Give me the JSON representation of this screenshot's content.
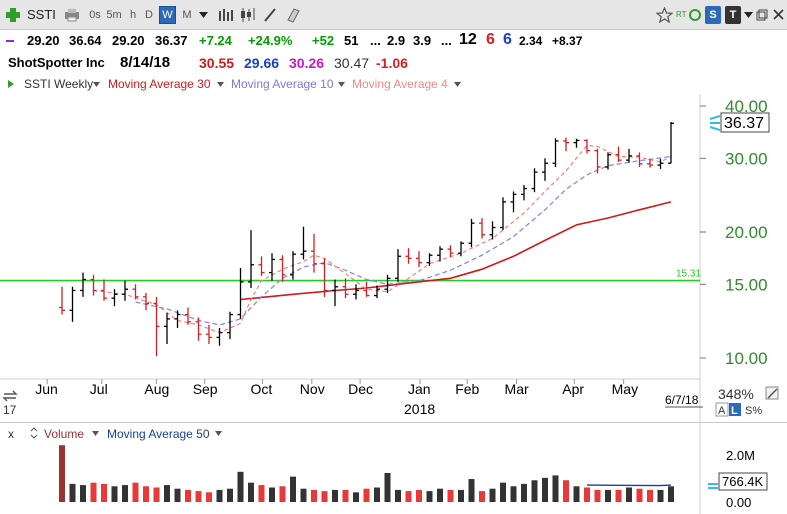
{
  "toolbar": {
    "symbol": "SSTI",
    "periods": [
      "0s",
      "5m",
      "h",
      "D",
      "W",
      "M"
    ],
    "selected_period": "W",
    "rt_label": "RT",
    "s_badge": "S",
    "t_badge": "T"
  },
  "quote": {
    "open": "29.20",
    "high": "36.64",
    "low": "29.20",
    "close": "36.37",
    "change": "+7.24",
    "change_pct": "+24.9%",
    "v1": "+52",
    "v2": "51",
    "dots": "...",
    "v3": "2.9",
    "v4": "3.9",
    "v5": "...",
    "n12": "12",
    "n6a": "6",
    "n6b": "6",
    "v6": "2.34",
    "v7": "+8.37"
  },
  "info": {
    "company": "ShotSpotter Inc",
    "date": "8/14/18",
    "ma30": "30.55",
    "ma10": "29.66",
    "ma4": "30.26",
    "last": "30.47",
    "delta": "-1.06"
  },
  "legend": {
    "series": "SSTI Weekly",
    "ma30": "Moving Average 30",
    "ma10": "Moving Average 10",
    "ma4": "Moving Average 4"
  },
  "price_axis": {
    "ticks": [
      "40.00",
      "30.00",
      "20.00",
      "15.00",
      "10.00"
    ],
    "current_price": "36.37",
    "percent": "348%",
    "line_label": "15.31"
  },
  "time_axis": {
    "months": [
      "Jun",
      "Jul",
      "Aug",
      "Sep",
      "Oct",
      "Nov",
      "Dec",
      "Jan",
      "Feb",
      "Mar",
      "Apr",
      "May"
    ],
    "year": "2018",
    "date_label": "6/7/18",
    "left_label": "17"
  },
  "scale_buttons": {
    "a": "A",
    "l": "L",
    "s": "S%"
  },
  "volume_panel": {
    "close": "x",
    "label": "Volume",
    "ma_label": "Moving Average 50",
    "ticks": [
      "2.0M",
      "766.4K",
      "0.00"
    ]
  },
  "colors": {
    "up": "#000000",
    "down": "#d42020",
    "ma30": "#cc1b1b",
    "ma10": "#8a8ae6",
    "ma4": "#f08080",
    "hline": "#22cc22",
    "change_up": "#00a000",
    "vol_up": "#333333",
    "vol_down": "#e83838",
    "vol_first": "#993333"
  },
  "chart_data": {
    "type": "ohlc",
    "interval": "weekly",
    "price_scale": "log",
    "ylim": [
      9.0,
      44.0
    ],
    "horizontal_line": 15.31,
    "bars": [
      {
        "o": 13.2,
        "h": 14.8,
        "l": 12.7,
        "c": 13.0
      },
      {
        "o": 13.0,
        "h": 14.8,
        "l": 12.2,
        "c": 14.5
      },
      {
        "o": 14.5,
        "h": 16.0,
        "l": 14.0,
        "c": 15.4
      },
      {
        "o": 15.4,
        "h": 15.8,
        "l": 14.1,
        "c": 14.5
      },
      {
        "o": 14.5,
        "h": 15.4,
        "l": 13.7,
        "c": 13.9
      },
      {
        "o": 13.9,
        "h": 14.6,
        "l": 13.3,
        "c": 14.2
      },
      {
        "o": 14.2,
        "h": 15.3,
        "l": 13.7,
        "c": 14.6
      },
      {
        "o": 14.6,
        "h": 15.0,
        "l": 13.8,
        "c": 14.0
      },
      {
        "o": 14.0,
        "h": 14.3,
        "l": 13.0,
        "c": 13.5
      },
      {
        "o": 13.5,
        "h": 14.0,
        "l": 10.1,
        "c": 11.9
      },
      {
        "o": 11.9,
        "h": 12.8,
        "l": 10.8,
        "c": 12.4
      },
      {
        "o": 12.4,
        "h": 13.0,
        "l": 11.8,
        "c": 12.7
      },
      {
        "o": 12.7,
        "h": 13.2,
        "l": 12.0,
        "c": 12.2
      },
      {
        "o": 12.2,
        "h": 12.5,
        "l": 11.0,
        "c": 11.4
      },
      {
        "o": 11.4,
        "h": 12.0,
        "l": 10.8,
        "c": 11.2
      },
      {
        "o": 11.2,
        "h": 11.8,
        "l": 10.7,
        "c": 11.5
      },
      {
        "o": 11.5,
        "h": 12.9,
        "l": 11.1,
        "c": 12.7
      },
      {
        "o": 12.7,
        "h": 16.4,
        "l": 12.4,
        "c": 15.2
      },
      {
        "o": 15.2,
        "h": 20.2,
        "l": 14.7,
        "c": 16.7
      },
      {
        "o": 16.7,
        "h": 17.5,
        "l": 15.7,
        "c": 16.0
      },
      {
        "o": 16.0,
        "h": 17.8,
        "l": 15.3,
        "c": 17.2
      },
      {
        "o": 17.2,
        "h": 17.6,
        "l": 15.2,
        "c": 15.8
      },
      {
        "o": 15.8,
        "h": 18.0,
        "l": 15.4,
        "c": 17.7
      },
      {
        "o": 17.7,
        "h": 20.6,
        "l": 17.2,
        "c": 18.0
      },
      {
        "o": 18.0,
        "h": 19.8,
        "l": 16.0,
        "c": 16.8
      },
      {
        "o": 16.8,
        "h": 17.3,
        "l": 14.0,
        "c": 14.5
      },
      {
        "o": 14.5,
        "h": 15.4,
        "l": 13.3,
        "c": 14.8
      },
      {
        "o": 14.8,
        "h": 15.5,
        "l": 13.9,
        "c": 14.2
      },
      {
        "o": 14.2,
        "h": 15.0,
        "l": 13.8,
        "c": 14.5
      },
      {
        "o": 14.5,
        "h": 15.2,
        "l": 14.0,
        "c": 14.1
      },
      {
        "o": 14.1,
        "h": 14.9,
        "l": 13.9,
        "c": 14.6
      },
      {
        "o": 14.6,
        "h": 15.8,
        "l": 14.3,
        "c": 15.5
      },
      {
        "o": 15.5,
        "h": 18.2,
        "l": 15.2,
        "c": 17.5
      },
      {
        "o": 17.5,
        "h": 18.3,
        "l": 16.8,
        "c": 17.3
      },
      {
        "o": 17.3,
        "h": 18.0,
        "l": 16.5,
        "c": 16.9
      },
      {
        "o": 16.9,
        "h": 17.8,
        "l": 16.6,
        "c": 17.6
      },
      {
        "o": 17.6,
        "h": 18.5,
        "l": 17.0,
        "c": 18.2
      },
      {
        "o": 18.2,
        "h": 18.6,
        "l": 17.4,
        "c": 17.8
      },
      {
        "o": 17.8,
        "h": 19.0,
        "l": 17.5,
        "c": 18.8
      },
      {
        "o": 18.8,
        "h": 21.5,
        "l": 18.4,
        "c": 21.0
      },
      {
        "o": 21.0,
        "h": 21.6,
        "l": 19.3,
        "c": 19.7
      },
      {
        "o": 19.7,
        "h": 21.2,
        "l": 19.2,
        "c": 20.5
      },
      {
        "o": 20.5,
        "h": 24.2,
        "l": 20.2,
        "c": 23.6
      },
      {
        "o": 23.6,
        "h": 25.0,
        "l": 22.3,
        "c": 24.6
      },
      {
        "o": 24.6,
        "h": 25.9,
        "l": 23.8,
        "c": 25.4
      },
      {
        "o": 25.4,
        "h": 28.4,
        "l": 24.9,
        "c": 27.8
      },
      {
        "o": 27.8,
        "h": 30.0,
        "l": 26.5,
        "c": 29.2
      },
      {
        "o": 29.2,
        "h": 33.5,
        "l": 28.6,
        "c": 33.0
      },
      {
        "o": 33.0,
        "h": 33.6,
        "l": 31.2,
        "c": 32.7
      },
      {
        "o": 32.7,
        "h": 33.4,
        "l": 31.8,
        "c": 33.1
      },
      {
        "o": 33.1,
        "h": 33.3,
        "l": 30.8,
        "c": 31.3
      },
      {
        "o": 31.3,
        "h": 31.6,
        "l": 27.6,
        "c": 28.6
      },
      {
        "o": 28.6,
        "h": 31.0,
        "l": 28.2,
        "c": 30.6
      },
      {
        "o": 30.6,
        "h": 32.0,
        "l": 29.4,
        "c": 29.7
      },
      {
        "o": 29.7,
        "h": 31.6,
        "l": 29.3,
        "c": 30.4
      },
      {
        "o": 30.4,
        "h": 31.0,
        "l": 28.6,
        "c": 29.1
      },
      {
        "o": 29.1,
        "h": 29.9,
        "l": 28.5,
        "c": 28.9
      },
      {
        "o": 28.9,
        "h": 29.9,
        "l": 28.3,
        "c": 29.2
      },
      {
        "o": 29.2,
        "h": 36.64,
        "l": 29.2,
        "c": 36.37
      }
    ],
    "ma30": [
      [
        17,
        13.8
      ],
      [
        22,
        14.2
      ],
      [
        26,
        14.5
      ],
      [
        29,
        14.7
      ],
      [
        33,
        15.1
      ],
      [
        37,
        15.5
      ],
      [
        40,
        16.3
      ],
      [
        43,
        17.5
      ],
      [
        46,
        19.1
      ],
      [
        49,
        20.8
      ],
      [
        52,
        21.6
      ],
      [
        55,
        22.6
      ],
      [
        58,
        23.6
      ]
    ],
    "ma10": [
      [
        7,
        13.6
      ],
      [
        10,
        13.1
      ],
      [
        13,
        12.3
      ],
      [
        15,
        12.0
      ],
      [
        17,
        12.4
      ],
      [
        19,
        14.0
      ],
      [
        21,
        15.5
      ],
      [
        23,
        16.5
      ],
      [
        25,
        16.9
      ],
      [
        27,
        16.2
      ],
      [
        29,
        15.4
      ],
      [
        31,
        15.0
      ],
      [
        34,
        15.3
      ],
      [
        37,
        16.2
      ],
      [
        40,
        17.6
      ],
      [
        43,
        19.5
      ],
      [
        46,
        22.6
      ],
      [
        48,
        25.3
      ],
      [
        50,
        27.4
      ],
      [
        52,
        28.8
      ],
      [
        55,
        29.6
      ],
      [
        58,
        30.3
      ]
    ],
    "ma4": [
      [
        3,
        14.5
      ],
      [
        6,
        14.2
      ],
      [
        9,
        13.4
      ],
      [
        11,
        12.3
      ],
      [
        13,
        12.0
      ],
      [
        15,
        11.5
      ],
      [
        17,
        12.1
      ],
      [
        18,
        13.8
      ],
      [
        19,
        15.3
      ],
      [
        21,
        16.3
      ],
      [
        23,
        17.0
      ],
      [
        24,
        17.6
      ],
      [
        25,
        17.3
      ],
      [
        27,
        15.9
      ],
      [
        29,
        14.6
      ],
      [
        31,
        14.4
      ],
      [
        33,
        15.5
      ],
      [
        35,
        16.8
      ],
      [
        38,
        17.8
      ],
      [
        41,
        19.3
      ],
      [
        44,
        22.2
      ],
      [
        46,
        25.0
      ],
      [
        48,
        28.0
      ],
      [
        50,
        32.2
      ],
      [
        51,
        32.0
      ],
      [
        53,
        30.3
      ],
      [
        55,
        30.2
      ],
      [
        57,
        29.4
      ],
      [
        58,
        30.3
      ]
    ],
    "volume_series": {
      "ylim": [
        0,
        2.4
      ],
      "values": [
        2.35,
        0.75,
        0.7,
        0.8,
        0.75,
        0.65,
        0.7,
        0.8,
        0.65,
        0.6,
        0.7,
        0.55,
        0.5,
        0.45,
        0.4,
        0.5,
        0.55,
        1.25,
        0.8,
        0.7,
        0.6,
        0.65,
        1.05,
        0.55,
        0.5,
        0.45,
        0.5,
        0.5,
        0.4,
        0.55,
        0.6,
        1.2,
        0.5,
        0.45,
        0.5,
        0.45,
        0.55,
        0.5,
        0.5,
        0.95,
        0.45,
        0.55,
        0.8,
        0.65,
        0.75,
        0.9,
        1.0,
        1.1,
        0.9,
        0.65,
        0.6,
        0.5,
        0.5,
        0.5,
        0.6,
        0.55,
        0.5,
        0.5,
        0.65
      ],
      "up": [
        0,
        1,
        1,
        0,
        0,
        1,
        1,
        0,
        0,
        0,
        1,
        1,
        0,
        0,
        0,
        1,
        1,
        1,
        1,
        0,
        1,
        0,
        1,
        1,
        0,
        0,
        1,
        0,
        1,
        0,
        1,
        1,
        1,
        0,
        0,
        1,
        1,
        0,
        1,
        1,
        0,
        1,
        1,
        1,
        1,
        1,
        1,
        1,
        0,
        1,
        0,
        0,
        1,
        0,
        1,
        0,
        0,
        1,
        1
      ],
      "ma50": [
        [
          50,
          0.7
        ],
        [
          57,
          0.68
        ],
        [
          58,
          0.7
        ]
      ]
    }
  }
}
